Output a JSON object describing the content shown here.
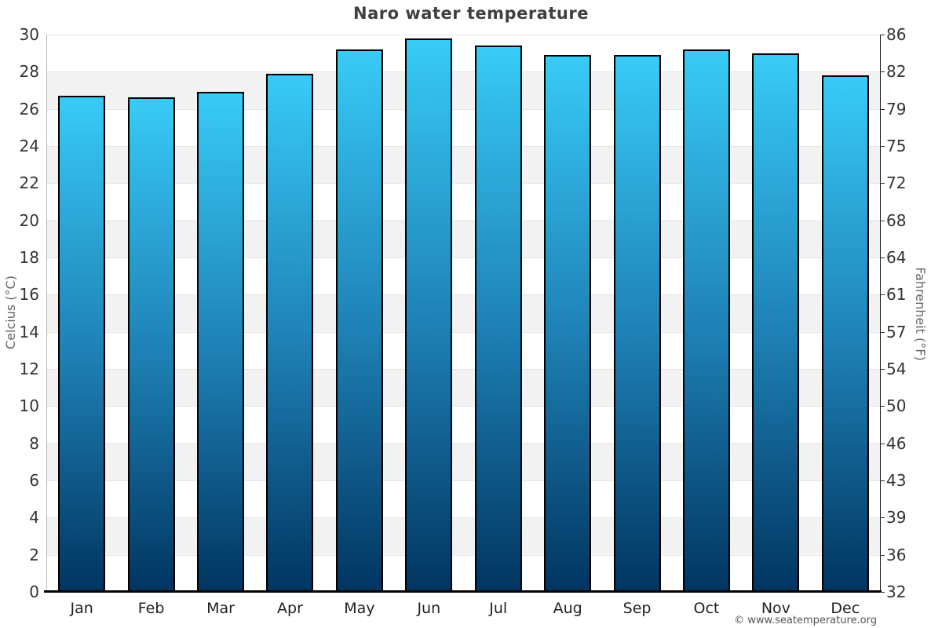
{
  "chart_data": {
    "type": "bar",
    "title": "Naro water temperature",
    "categories": [
      "Jan",
      "Feb",
      "Mar",
      "Apr",
      "May",
      "Jun",
      "Jul",
      "Aug",
      "Sep",
      "Oct",
      "Nov",
      "Dec"
    ],
    "values": [
      26.7,
      26.6,
      26.9,
      27.9,
      29.2,
      29.8,
      29.4,
      28.9,
      28.9,
      29.2,
      29.0,
      27.8
    ],
    "unit": "°C",
    "ylabel_left": "Celcius (°C)",
    "ylabel_right": "Fahrenheit (°F)",
    "ylim": [
      0,
      30
    ],
    "ytick_step_celsius": 2,
    "yticks_celsius": [
      0,
      2,
      4,
      6,
      8,
      10,
      12,
      14,
      16,
      18,
      20,
      22,
      24,
      26,
      28,
      30
    ],
    "yticks_fahrenheit": [
      32,
      36,
      39,
      43,
      46,
      50,
      54,
      57,
      61,
      64,
      68,
      72,
      75,
      79,
      82,
      86
    ],
    "grid": "zebra-bands",
    "legend": "none",
    "footer": "© www.seatemperature.org",
    "colors": {
      "bar_gradient_top": "#38cbf6",
      "bar_gradient_mid": "#1e80b5",
      "bar_gradient_bottom": "#013560",
      "bar_border": "#000000",
      "band_gray": "#f2f2f2",
      "band_white": "#ffffff",
      "gridline": "#e4e4e4",
      "title_color": "#404040",
      "tick_color": "#333333",
      "axis_title_color": "#666666",
      "footer_color": "#555555"
    }
  }
}
